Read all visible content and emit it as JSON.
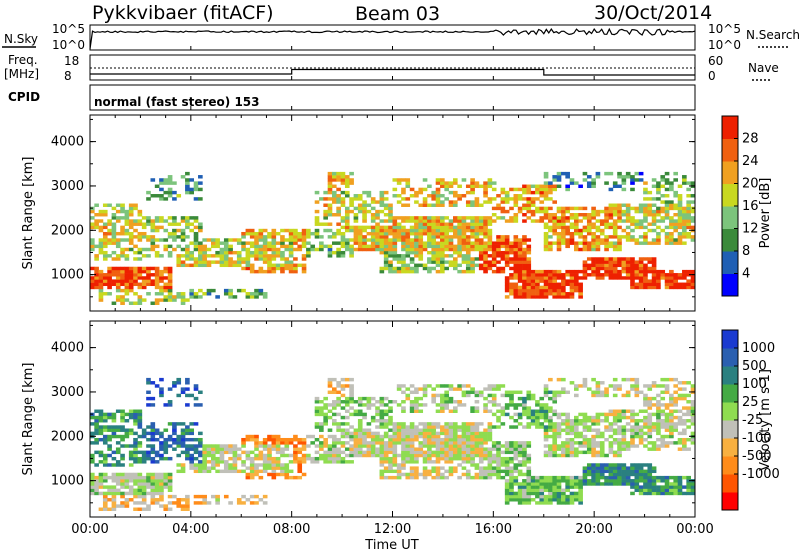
{
  "header": {
    "station": "Pykkvibaer (fitACF)",
    "beam": "Beam 03",
    "date": "30/Oct/2014"
  },
  "strips": {
    "nsky_label": "N.Sky",
    "nsky_ticks": [
      "10^5",
      "10^0"
    ],
    "nsearch_label": "N.Search",
    "nsearch_ticks": [
      "10^5",
      "10^0"
    ],
    "freq_label_top": "Freq.",
    "freq_label_unit": "[MHz]",
    "freq_ticks": [
      "18",
      "8"
    ],
    "nave_label": "Nave",
    "nave_ticks": [
      "60",
      "0"
    ],
    "cpid_label": "CPID",
    "cpid_text": "normal (fast stereo) 153"
  },
  "colors": {
    "power": [
      "#0000ff",
      "#1f5fb4",
      "#3a8a3a",
      "#7cc47c",
      "#c8d820",
      "#f0a020",
      "#f06010",
      "#ee2000"
    ],
    "velocity": [
      "#ff0000",
      "#ff5500",
      "#ff8c1a",
      "#f8b040",
      "#c0c0b8",
      "#8fdc50",
      "#44aa44",
      "#2a8080",
      "#2a5fb0",
      "#1a3ad0"
    ]
  },
  "chart_data": [
    {
      "type": "heatmap",
      "panel": "power",
      "xlabel": "",
      "ylabel": "Slant Range [km]",
      "xlim": [
        "00:00",
        "24:00"
      ],
      "ylim": [
        180,
        4600
      ],
      "yticks": [
        "1000",
        "2000",
        "3000",
        "4000"
      ],
      "colorbar": {
        "label": "Power [dB]",
        "ticks": [
          "4",
          "8",
          "12",
          "16",
          "20",
          "24",
          "28"
        ],
        "range": [
          0,
          32
        ]
      }
    },
    {
      "type": "heatmap",
      "panel": "velocity",
      "xlabel": "Time UT",
      "ylabel": "Slant Range [km]",
      "xlim": [
        "00:00",
        "24:00"
      ],
      "xticks": [
        "00:00",
        "04:00",
        "08:00",
        "12:00",
        "16:00",
        "20:00",
        "00:00"
      ],
      "ylim": [
        180,
        4600
      ],
      "yticks": [
        "1000",
        "2000",
        "3000",
        "4000"
      ],
      "colorbar": {
        "label": "Velocity [m s-1]",
        "ticks": [
          "1000",
          "500",
          "100",
          "25",
          "-25",
          "-100",
          "-500",
          "-1000"
        ]
      }
    }
  ]
}
